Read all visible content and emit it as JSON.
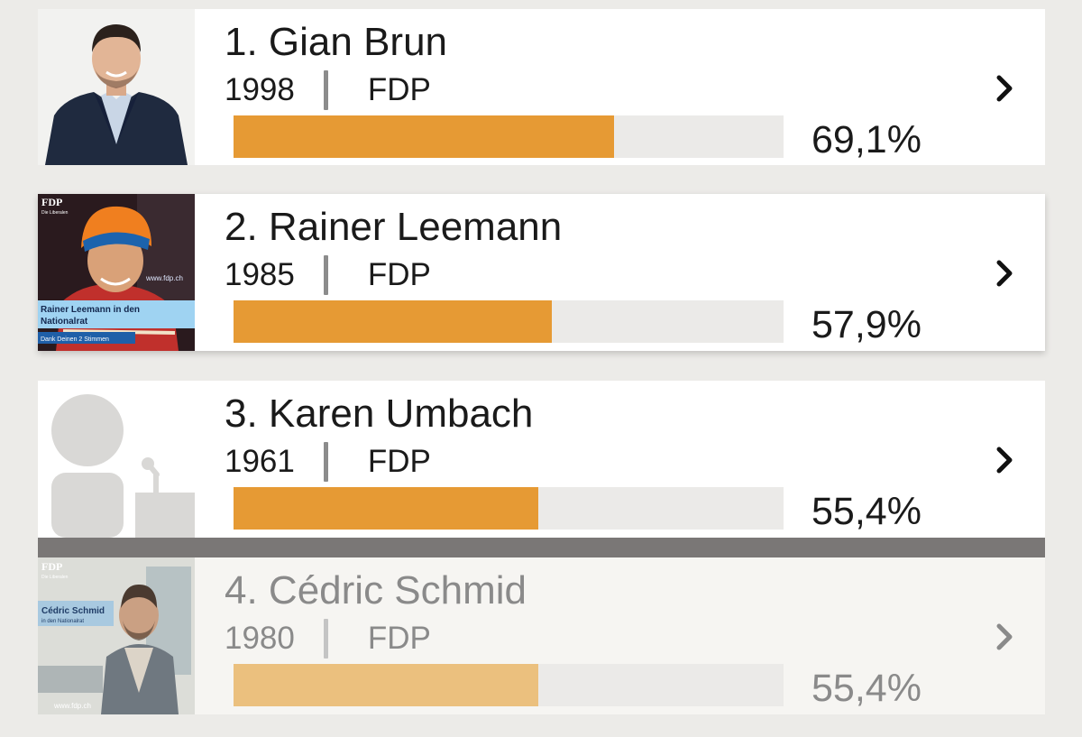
{
  "candidates": [
    {
      "rank_name": "1. Gian Brun",
      "year": "1998",
      "party": "FDP",
      "percent_label": "69,1%",
      "share": 0.691,
      "photo": "portrait-photo"
    },
    {
      "rank_name": "2. Rainer Leemann",
      "year": "1985",
      "party": "FDP",
      "percent_label": "57,9%",
      "share": 0.579,
      "photo": "campaign-photo",
      "photo_text": {
        "logo": "FDP",
        "logo_sub": "Die Liberalen",
        "banner_line1": "Rainer Leemann in den",
        "banner_line2": "Nationalrat",
        "banner_small": "Dank Deinen 2 Stimmen",
        "url": "www.fdp.ch"
      }
    },
    {
      "rank_name": "3. Karen Umbach",
      "year": "1961",
      "party": "FDP",
      "percent_label": "55,4%",
      "share": 0.554,
      "photo": "placeholder-avatar"
    },
    {
      "rank_name": "4. Cédric Schmid",
      "year": "1980",
      "party": "FDP",
      "percent_label": "55,4%",
      "share": 0.554,
      "photo": "campaign-photo",
      "dimmed": true,
      "photo_text": {
        "logo": "FDP",
        "logo_sub": "Die Liberalen",
        "banner_line1": "Cédric Schmid",
        "banner_line2": "in den Nationalrat",
        "url": "www.fdp.ch"
      }
    }
  ],
  "colors": {
    "bar_fill": "#e69a34",
    "bar_fill_dimmed": "#ebc07e",
    "bar_track": "#ebeae8",
    "divider": "#7a7776",
    "background": "#ecebe8"
  },
  "icons": {
    "row_action": "chevron-right-icon"
  }
}
